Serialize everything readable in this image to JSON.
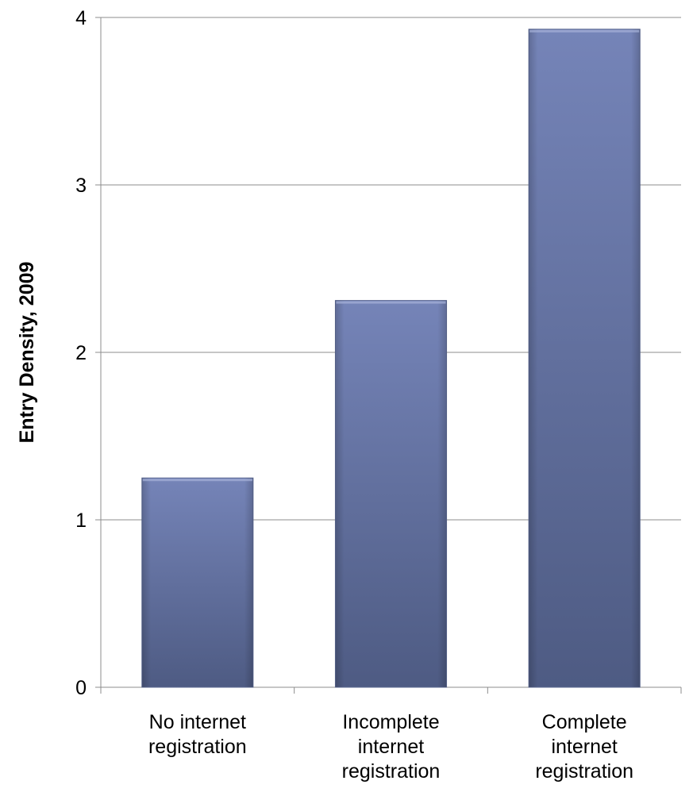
{
  "chart_data": {
    "type": "bar",
    "categories": [
      [
        "No internet",
        "registration"
      ],
      [
        "Incomplete",
        "internet",
        "registration"
      ],
      [
        "Complete",
        "internet",
        "registration"
      ]
    ],
    "values": [
      1.25,
      2.31,
      3.93
    ],
    "title": "",
    "xlabel": "",
    "ylabel": "Entry Density, 2009",
    "ylim": [
      0,
      4
    ],
    "yticks": [
      "0",
      "1",
      "2",
      "3",
      "4"
    ],
    "grid": true,
    "legend": "none",
    "colors": {
      "bar_top": "#7584b8",
      "bar_bottom": "#4e5b83",
      "grid": "#8c8c8c",
      "axis": "#8c8c8c"
    }
  }
}
